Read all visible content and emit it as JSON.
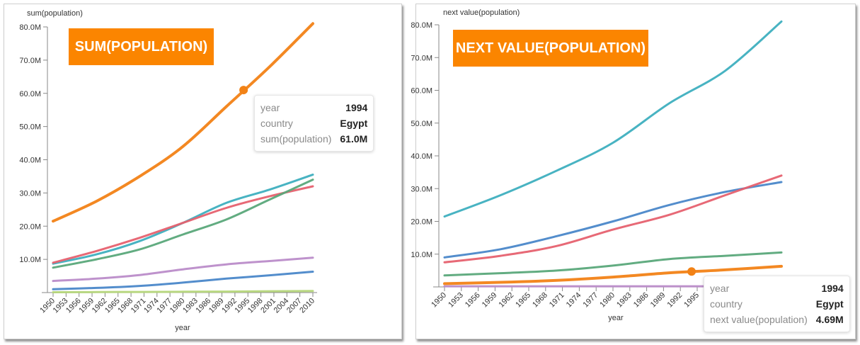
{
  "chart_data": [
    {
      "type": "line",
      "banner": "SUM(POPULATION)",
      "ylabel": "sum(population)",
      "xlabel": "year",
      "ylim": [
        0,
        80
      ],
      "yticks": [
        "80.0M",
        "70.0M",
        "60.0M",
        "50.0M",
        "40.0M",
        "30.0M",
        "20.0M",
        "10.0M"
      ],
      "ytick_values": [
        80,
        70,
        60,
        50,
        40,
        30,
        20,
        10
      ],
      "xticks": [
        "1950",
        "1953",
        "1956",
        "1959",
        "1962",
        "1965",
        "1968",
        "1971",
        "1974",
        "1977",
        "1980",
        "1983",
        "1986",
        "1989",
        "1992",
        "1995",
        "1998",
        "2001",
        "2004",
        "2007",
        "2010"
      ],
      "x": [
        1950,
        1960,
        1970,
        1980,
        1990,
        2000,
        2010
      ],
      "units": "millions",
      "series": [
        {
          "name": "Egypt",
          "color": "#f28216",
          "width": 4,
          "values": [
            21.5,
            27.5,
            35,
            44,
            56,
            68,
            81
          ]
        },
        {
          "name": "series-teal",
          "color": "#3eafbf",
          "width": 3,
          "values": [
            8.7,
            11.5,
            15.5,
            21,
            27,
            31,
            35.5
          ]
        },
        {
          "name": "series-red",
          "color": "#e6616f",
          "width": 3,
          "values": [
            9,
            12.5,
            16.5,
            21,
            25.5,
            29,
            32
          ]
        },
        {
          "name": "series-green",
          "color": "#5aa87a",
          "width": 3,
          "values": [
            7.5,
            10,
            13,
            17.5,
            22,
            28,
            34
          ]
        },
        {
          "name": "series-purple",
          "color": "#bb8cc9",
          "width": 3,
          "values": [
            3.5,
            4.2,
            5.3,
            7,
            8.5,
            9.5,
            10.5
          ]
        },
        {
          "name": "series-blue",
          "color": "#4a87c9",
          "width": 3,
          "values": [
            1,
            1.4,
            2,
            3,
            4.2,
            5.2,
            6.3
          ]
        },
        {
          "name": "series-lime",
          "color": "#b5d67a",
          "width": 3,
          "values": [
            0.1,
            0.15,
            0.2,
            0.25,
            0.3,
            0.4,
            0.5
          ]
        }
      ],
      "highlight": {
        "series": "Egypt",
        "x": 1994,
        "y": 61.0
      },
      "tooltip": {
        "rows": [
          {
            "key": "year",
            "value": "1994"
          },
          {
            "key": "country",
            "value": "Egypt"
          },
          {
            "key": "sum(population)",
            "value": "61.0M"
          }
        ]
      }
    },
    {
      "type": "line",
      "banner": "NEXT VALUE(POPULATION)",
      "ylabel": "next value(population)",
      "xlabel": "year",
      "ylim": [
        0,
        80
      ],
      "yticks": [
        "80.0M",
        "70.0M",
        "60.0M",
        "50.0M",
        "40.0M",
        "30.0M",
        "20.0M",
        "10.0M"
      ],
      "ytick_values": [
        80,
        70,
        60,
        50,
        40,
        30,
        20,
        10
      ],
      "xticks": [
        "1950",
        "1953",
        "1956",
        "1959",
        "1962",
        "1965",
        "1968",
        "1971",
        "1974",
        "1977",
        "1980",
        "1983",
        "1986",
        "1989",
        "1992",
        "1995"
      ],
      "x": [
        1950,
        1960,
        1970,
        1980,
        1990,
        2000,
        2010
      ],
      "units": "millions",
      "series": [
        {
          "name": "series-teal",
          "color": "#3eafbf",
          "width": 3,
          "values": [
            21.5,
            28,
            35.5,
            44,
            56,
            66,
            81
          ]
        },
        {
          "name": "series-blue",
          "color": "#4a87c9",
          "width": 3,
          "values": [
            9,
            11.5,
            15.5,
            20,
            25,
            29,
            32
          ]
        },
        {
          "name": "series-red",
          "color": "#e6616f",
          "width": 3,
          "values": [
            7.5,
            9.5,
            12.5,
            17.5,
            22,
            28,
            34
          ]
        },
        {
          "name": "series-green",
          "color": "#5aa87a",
          "width": 3,
          "values": [
            3.5,
            4.2,
            5,
            6.5,
            8.5,
            9.5,
            10.5
          ]
        },
        {
          "name": "Egypt",
          "color": "#f28216",
          "width": 4,
          "values": [
            1,
            1.4,
            2,
            3,
            4.3,
            5.2,
            6.3
          ]
        },
        {
          "name": "series-purple",
          "color": "#bb8cc9",
          "width": 3,
          "values": [
            0.2,
            0.2,
            0.2,
            0.2,
            0.2,
            0.2,
            0.2
          ]
        }
      ],
      "highlight": {
        "series": "Egypt",
        "x": 1994,
        "y": 4.69
      },
      "tooltip": {
        "rows": [
          {
            "key": "year",
            "value": "1994"
          },
          {
            "key": "country",
            "value": "Egypt"
          },
          {
            "key": "next value(population)",
            "value": "4.69M"
          }
        ]
      }
    }
  ]
}
